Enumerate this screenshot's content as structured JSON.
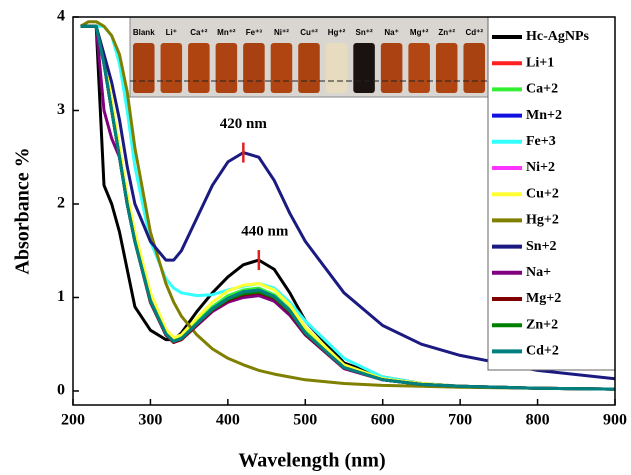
{
  "chart_data": {
    "type": "line",
    "xlabel": "Wavelength (nm)",
    "ylabel": "Absorbance %",
    "annotations": [
      "420 nm",
      "440 nm"
    ],
    "inset_labels": [
      "Blank",
      "Li⁺",
      "Ca⁺²",
      "Mn⁺²",
      "Fe⁺³",
      "Ni⁺²",
      "Cu⁺²",
      "Hg⁺²",
      "Sn⁺²",
      "Na⁺",
      "Mg⁺²",
      "Zn⁺²",
      "Cd⁺²"
    ],
    "xlim": [
      200,
      900
    ],
    "xticks": [
      200,
      300,
      400,
      500,
      600,
      700,
      800,
      900
    ],
    "ylim": [
      -0.15,
      4
    ],
    "yticks": [
      0,
      1,
      2,
      3,
      4
    ],
    "x": [
      210,
      220,
      230,
      240,
      250,
      260,
      270,
      280,
      300,
      320,
      330,
      340,
      360,
      380,
      400,
      420,
      440,
      460,
      480,
      500,
      550,
      600,
      650,
      700,
      800,
      900
    ],
    "series": [
      {
        "name": "Hc-AgNPs",
        "color": "#000000",
        "values": [
          3.9,
          3.9,
          3.9,
          2.2,
          2.0,
          1.7,
          1.3,
          0.9,
          0.65,
          0.55,
          0.55,
          0.62,
          0.85,
          1.05,
          1.22,
          1.35,
          1.4,
          1.3,
          1.05,
          0.75,
          0.3,
          0.15,
          0.08,
          0.05,
          0.03,
          0.02
        ]
      },
      {
        "name": "Li+1",
        "color": "#ff2020",
        "values": [
          3.9,
          3.9,
          3.9,
          3.5,
          3.0,
          2.5,
          2.0,
          1.6,
          0.95,
          0.6,
          0.52,
          0.55,
          0.7,
          0.85,
          0.95,
          1.01,
          1.03,
          0.97,
          0.82,
          0.6,
          0.24,
          0.12,
          0.07,
          0.05,
          0.03,
          0.02
        ]
      },
      {
        "name": "Ca+2",
        "color": "#33ee33",
        "values": [
          3.9,
          3.9,
          3.9,
          3.5,
          3.05,
          2.55,
          2.05,
          1.65,
          1.0,
          0.63,
          0.55,
          0.58,
          0.74,
          0.9,
          1.02,
          1.08,
          1.1,
          1.03,
          0.87,
          0.64,
          0.26,
          0.12,
          0.07,
          0.05,
          0.03,
          0.02
        ]
      },
      {
        "name": "Mn+2",
        "color": "#1010e0",
        "values": [
          3.9,
          3.9,
          3.9,
          3.5,
          3.0,
          2.5,
          2.0,
          1.6,
          0.97,
          0.61,
          0.53,
          0.56,
          0.72,
          0.88,
          0.99,
          1.06,
          1.08,
          1.01,
          0.86,
          0.62,
          0.25,
          0.12,
          0.07,
          0.05,
          0.03,
          0.02
        ]
      },
      {
        "name": "Fe+3",
        "color": "#33ffff",
        "values": [
          3.9,
          3.9,
          3.9,
          3.9,
          3.8,
          3.5,
          3.0,
          2.4,
          1.6,
          1.2,
          1.1,
          1.05,
          1.02,
          1.03,
          1.08,
          1.12,
          1.15,
          1.1,
          0.95,
          0.75,
          0.35,
          0.15,
          0.08,
          0.05,
          0.03,
          0.02
        ]
      },
      {
        "name": "Ni+2",
        "color": "#ff33ff",
        "values": [
          3.9,
          3.9,
          3.9,
          3.5,
          3.0,
          2.5,
          2.0,
          1.6,
          0.95,
          0.6,
          0.52,
          0.55,
          0.71,
          0.86,
          0.96,
          1.02,
          1.04,
          0.98,
          0.83,
          0.61,
          0.24,
          0.12,
          0.07,
          0.05,
          0.03,
          0.02
        ]
      },
      {
        "name": "Cu+2",
        "color": "#ffff33",
        "values": [
          3.9,
          3.9,
          3.9,
          3.6,
          3.1,
          2.6,
          2.1,
          1.7,
          1.05,
          0.66,
          0.57,
          0.6,
          0.78,
          0.95,
          1.07,
          1.13,
          1.15,
          1.08,
          0.92,
          0.68,
          0.28,
          0.13,
          0.08,
          0.05,
          0.03,
          0.02
        ]
      },
      {
        "name": "Hg+2",
        "color": "#808000",
        "values": [
          3.9,
          3.95,
          3.95,
          3.9,
          3.8,
          3.6,
          3.2,
          2.6,
          1.7,
          1.15,
          0.95,
          0.8,
          0.6,
          0.45,
          0.35,
          0.28,
          0.22,
          0.18,
          0.15,
          0.12,
          0.08,
          0.06,
          0.05,
          0.04,
          0.03,
          0.02
        ]
      },
      {
        "name": "Sn+2",
        "color": "#1a1a80",
        "values": [
          3.9,
          3.9,
          3.9,
          3.6,
          3.3,
          2.9,
          2.4,
          2.0,
          1.6,
          1.4,
          1.4,
          1.5,
          1.85,
          2.2,
          2.45,
          2.55,
          2.5,
          2.25,
          1.9,
          1.6,
          1.05,
          0.7,
          0.5,
          0.38,
          0.22,
          0.13
        ]
      },
      {
        "name": "Na+",
        "color": "#800080",
        "values": [
          3.9,
          3.9,
          3.9,
          3.0,
          2.7,
          2.5,
          2.0,
          1.6,
          0.95,
          0.6,
          0.52,
          0.55,
          0.7,
          0.85,
          0.95,
          1.0,
          1.02,
          0.96,
          0.81,
          0.6,
          0.24,
          0.12,
          0.07,
          0.05,
          0.03,
          0.02
        ]
      },
      {
        "name": "Mg+2",
        "color": "#800000",
        "values": [
          3.9,
          3.9,
          3.9,
          3.5,
          3.0,
          2.5,
          2.0,
          1.6,
          0.96,
          0.6,
          0.52,
          0.55,
          0.71,
          0.87,
          0.97,
          1.03,
          1.05,
          0.99,
          0.84,
          0.61,
          0.25,
          0.12,
          0.07,
          0.05,
          0.03,
          0.02
        ]
      },
      {
        "name": "Zn+2",
        "color": "#008000",
        "values": [
          3.9,
          3.9,
          3.9,
          3.5,
          3.0,
          2.5,
          2.0,
          1.6,
          0.96,
          0.61,
          0.53,
          0.56,
          0.72,
          0.87,
          0.98,
          1.04,
          1.06,
          1.0,
          0.85,
          0.62,
          0.25,
          0.12,
          0.07,
          0.05,
          0.03,
          0.02
        ]
      },
      {
        "name": "Cd+2",
        "color": "#008080",
        "values": [
          3.9,
          3.9,
          3.9,
          3.5,
          3.0,
          2.5,
          2.0,
          1.6,
          0.97,
          0.61,
          0.53,
          0.56,
          0.72,
          0.88,
          0.99,
          1.06,
          1.08,
          1.01,
          0.86,
          0.62,
          0.25,
          0.12,
          0.07,
          0.05,
          0.03,
          0.02
        ]
      }
    ]
  }
}
